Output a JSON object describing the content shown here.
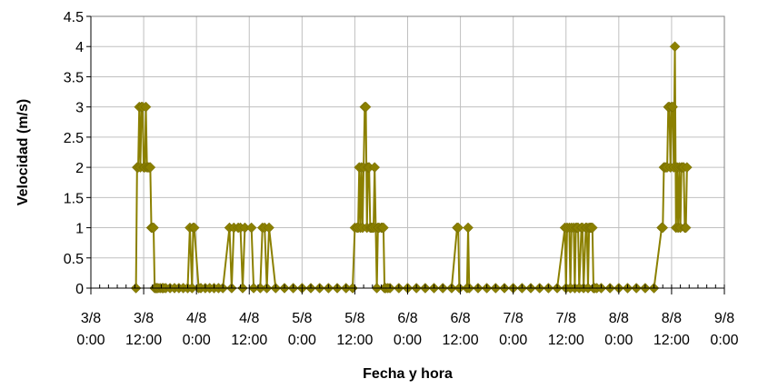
{
  "chart_data": {
    "type": "line",
    "title": "",
    "xlabel": "Fecha y hora",
    "ylabel": "Velocidad (m/s)",
    "ylim": [
      0,
      4.5
    ],
    "xlim": [
      "2008-08-03T00:00",
      "2008-08-09T00:00"
    ],
    "grid": true,
    "legend": "none",
    "colors": {
      "series": "#8B8000",
      "grid": "#c0c0c0",
      "axis": "#000000"
    },
    "y_ticks": [
      "0",
      "0.5",
      "1",
      "1.5",
      "2",
      "2.5",
      "3",
      "3.5",
      "4",
      "4.5"
    ],
    "x_ticks": [
      {
        "date": "3/8",
        "time": "0:00"
      },
      {
        "date": "3/8",
        "time": "12:00"
      },
      {
        "date": "4/8",
        "time": "0:00"
      },
      {
        "date": "4/8",
        "time": "12:00"
      },
      {
        "date": "5/8",
        "time": "0:00"
      },
      {
        "date": "5/8",
        "time": "12:00"
      },
      {
        "date": "6/8",
        "time": "0:00"
      },
      {
        "date": "6/8",
        "time": "12:00"
      },
      {
        "date": "7/8",
        "time": "0:00"
      },
      {
        "date": "7/8",
        "time": "12:00"
      },
      {
        "date": "8/8",
        "time": "0:00"
      },
      {
        "date": "8/8",
        "time": "12:00"
      },
      {
        "date": "9/8",
        "time": "0:00"
      }
    ],
    "series": [
      {
        "x": [
          "2008-08-03T10:15",
          "2008-08-03T10:30",
          "2008-08-03T10:45",
          "2008-08-03T11:00",
          "2008-08-03T11:15",
          "2008-08-03T11:30",
          "2008-08-03T11:45",
          "2008-08-03T12:00",
          "2008-08-03T12:15",
          "2008-08-03T12:30",
          "2008-08-03T12:45",
          "2008-08-03T13:00",
          "2008-08-03T13:15",
          "2008-08-03T13:30",
          "2008-08-03T13:45",
          "2008-08-03T14:00",
          "2008-08-03T14:15",
          "2008-08-03T14:30",
          "2008-08-03T14:45",
          "2008-08-03T15:00",
          "2008-08-03T15:15",
          "2008-08-03T15:45",
          "2008-08-03T16:15",
          "2008-08-03T16:30",
          "2008-08-03T17:00",
          "2008-08-03T18:00",
          "2008-08-03T19:00",
          "2008-08-03T20:00",
          "2008-08-03T21:00",
          "2008-08-03T22:00",
          "2008-08-03T22:30",
          "2008-08-03T23:00",
          "2008-08-03T23:15",
          "2008-08-03T23:30",
          "2008-08-04T00:30",
          "2008-08-04T01:00",
          "2008-08-04T02:00",
          "2008-08-04T03:00",
          "2008-08-04T04:00",
          "2008-08-04T05:00",
          "2008-08-04T06:00",
          "2008-08-04T07:30",
          "2008-08-04T08:00",
          "2008-08-04T08:30",
          "2008-08-04T09:30",
          "2008-08-04T10:00",
          "2008-08-04T10:30",
          "2008-08-04T11:00",
          "2008-08-04T12:30",
          "2008-08-04T13:00",
          "2008-08-04T14:30",
          "2008-08-04T15:00",
          "2008-08-04T15:30",
          "2008-08-04T16:00",
          "2008-08-04T16:30",
          "2008-08-04T18:00",
          "2008-08-04T20:00",
          "2008-08-04T22:00",
          "2008-08-05T00:00",
          "2008-08-05T02:00",
          "2008-08-05T04:00",
          "2008-08-05T06:00",
          "2008-08-05T08:00",
          "2008-08-05T10:00",
          "2008-08-05T11:30",
          "2008-08-05T12:00",
          "2008-08-05T12:30",
          "2008-08-05T12:45",
          "2008-08-05T13:00",
          "2008-08-05T13:15",
          "2008-08-05T13:30",
          "2008-08-05T13:45",
          "2008-08-05T14:00",
          "2008-08-05T14:15",
          "2008-08-05T14:30",
          "2008-08-05T14:45",
          "2008-08-05T15:00",
          "2008-08-05T15:15",
          "2008-08-05T15:30",
          "2008-08-05T15:45",
          "2008-08-05T16:00",
          "2008-08-05T16:15",
          "2008-08-05T16:30",
          "2008-08-05T16:45",
          "2008-08-05T17:00",
          "2008-08-05T17:15",
          "2008-08-05T17:30",
          "2008-08-05T18:00",
          "2008-08-05T18:15",
          "2008-08-05T18:30",
          "2008-08-05T18:45",
          "2008-08-05T19:00",
          "2008-08-05T19:30",
          "2008-08-05T20:00",
          "2008-08-05T22:00",
          "2008-08-06T00:00",
          "2008-08-06T02:00",
          "2008-08-06T04:00",
          "2008-08-06T06:00",
          "2008-08-06T08:00",
          "2008-08-06T10:00",
          "2008-08-06T11:15",
          "2008-08-06T11:30",
          "2008-08-06T11:45",
          "2008-08-06T13:30",
          "2008-08-06T13:45",
          "2008-08-06T14:00",
          "2008-08-06T16:00",
          "2008-08-06T18:00",
          "2008-08-06T20:00",
          "2008-08-06T22:00",
          "2008-08-07T00:00",
          "2008-08-07T02:00",
          "2008-08-07T04:00",
          "2008-08-07T06:00",
          "2008-08-07T08:00",
          "2008-08-07T10:00",
          "2008-08-07T11:45",
          "2008-08-07T12:00",
          "2008-08-07T12:15",
          "2008-08-07T12:45",
          "2008-08-07T13:00",
          "2008-08-07T13:15",
          "2008-08-07T13:45",
          "2008-08-07T14:00",
          "2008-08-07T14:15",
          "2008-08-07T14:30",
          "2008-08-07T14:45",
          "2008-08-07T15:00",
          "2008-08-07T15:30",
          "2008-08-07T15:45",
          "2008-08-07T16:00",
          "2008-08-07T16:30",
          "2008-08-07T16:45",
          "2008-08-07T17:00",
          "2008-08-07T17:15",
          "2008-08-07T17:30",
          "2008-08-07T17:45",
          "2008-08-07T18:00",
          "2008-08-07T18:15",
          "2008-08-07T18:30",
          "2008-08-07T19:00",
          "2008-08-07T20:00",
          "2008-08-07T22:00",
          "2008-08-08T00:00",
          "2008-08-08T02:00",
          "2008-08-08T04:00",
          "2008-08-08T06:00",
          "2008-08-08T08:00",
          "2008-08-08T09:45",
          "2008-08-08T10:00",
          "2008-08-08T10:15",
          "2008-08-08T10:30",
          "2008-08-08T10:45",
          "2008-08-08T11:00",
          "2008-08-08T11:15",
          "2008-08-08T11:30",
          "2008-08-08T11:45",
          "2008-08-08T12:00",
          "2008-08-08T12:15",
          "2008-08-08T12:30",
          "2008-08-08T12:45",
          "2008-08-08T13:00",
          "2008-08-08T13:15",
          "2008-08-08T13:30",
          "2008-08-08T13:45",
          "2008-08-08T14:00",
          "2008-08-08T14:15",
          "2008-08-08T14:30",
          "2008-08-08T14:45",
          "2008-08-08T15:00",
          "2008-08-08T15:15",
          "2008-08-08T15:30"
        ],
        "y": [
          0,
          2,
          2,
          3,
          2,
          3,
          3,
          2,
          2,
          3,
          2,
          2,
          2,
          2,
          1,
          1,
          1,
          0,
          0,
          0,
          0,
          0,
          0,
          0,
          0,
          0,
          0,
          0,
          0,
          0,
          1,
          0,
          1,
          1,
          0,
          0,
          0,
          0,
          0,
          0,
          0,
          1,
          0,
          1,
          1,
          1,
          0,
          1,
          1,
          0,
          0,
          1,
          1,
          0,
          1,
          0,
          0,
          0,
          0,
          0,
          0,
          0,
          0,
          0,
          0,
          1,
          1,
          1,
          2,
          1,
          2,
          1,
          2,
          3,
          3,
          1,
          2,
          2,
          1,
          1,
          1,
          1,
          2,
          1,
          0,
          1,
          1,
          1,
          1,
          1,
          0,
          0,
          0,
          0,
          0,
          0,
          0,
          0,
          0,
          0,
          0,
          1,
          1,
          0,
          0,
          1,
          0,
          0,
          0,
          0,
          0,
          0,
          0,
          0,
          0,
          0,
          0,
          1,
          0,
          1,
          1,
          0,
          1,
          1,
          0,
          1,
          1,
          1,
          0,
          1,
          1,
          0,
          1,
          1,
          0,
          1,
          1,
          1,
          1,
          0,
          0,
          0,
          0,
          0,
          0,
          0,
          0,
          0,
          0,
          1,
          1,
          2,
          2,
          2,
          2,
          3,
          3,
          2,
          3,
          3,
          2,
          4,
          1,
          2,
          1,
          2,
          1,
          2,
          2,
          2,
          1,
          1,
          2
        ]
      }
    ]
  }
}
